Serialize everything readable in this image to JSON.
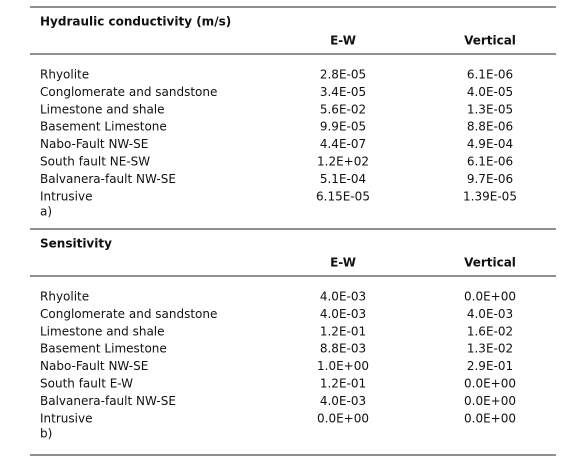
{
  "tables": [
    {
      "title": "Hydraulic conductivity (m/s)",
      "headers": [
        "E-W",
        "Vertical"
      ],
      "rows": [
        [
          "Rhyolite",
          "2.8E-05",
          "6.1E-06"
        ],
        [
          "Conglomerate and sandstone",
          "3.4E-05",
          "4.0E-05"
        ],
        [
          "Limestone and shale",
          "5.6E-02",
          "1.3E-05"
        ],
        [
          "Basement Limestone",
          "9.9E-05",
          "8.8E-06"
        ],
        [
          "Nabo-Fault NW-SE",
          "4.4E-07",
          "4.9E-04"
        ],
        [
          "South fault NE-SW",
          "1.2E+02",
          "6.1E-06"
        ],
        [
          "Balvanera-fault NW-SE",
          "5.1E-04",
          "9.7E-06"
        ],
        [
          "Intrusive",
          "6.15E-05",
          "1.39E-05"
        ]
      ],
      "label": "a)"
    },
    {
      "title": "Sensitivity",
      "headers": [
        "E-W",
        "Vertical"
      ],
      "rows": [
        [
          "Rhyolite",
          "4.0E-03",
          "0.0E+00"
        ],
        [
          "Conglomerate and sandstone",
          "4.0E-03",
          "4.0E-03"
        ],
        [
          "Limestone and shale",
          "1.2E-01",
          "1.6E-02"
        ],
        [
          "Basement Limestone",
          "8.8E-03",
          "1.3E-02"
        ],
        [
          "Nabo-Fault NW-SE",
          "1.0E+00",
          "2.9E-01"
        ],
        [
          "South fault E-W",
          "1.2E-01",
          "0.0E+00"
        ],
        [
          "Balvanera-fault NW-SE",
          "4.0E-03",
          "0.0E+00"
        ],
        [
          "Intrusive",
          "0.0E+00",
          "0.0E+00"
        ]
      ],
      "label": "b)"
    }
  ]
}
